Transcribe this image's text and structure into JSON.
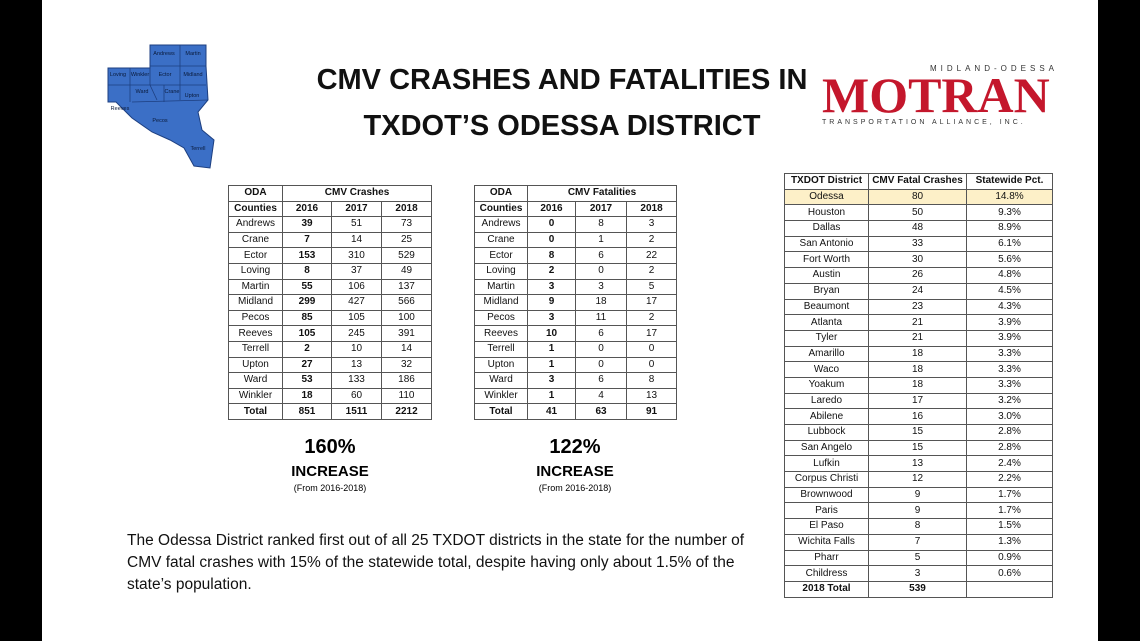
{
  "title_lines": [
    "CMV CRASHES AND FATALITIES IN",
    "TXDOT’S ODESSA DISTRICT"
  ],
  "map": {
    "labels": [
      "Andrews",
      "Martin",
      "Loving",
      "Winkler",
      "Ector",
      "Midland",
      "Ward",
      "Crane",
      "Upton",
      "Reeves",
      "Pecos",
      "Terrell"
    ]
  },
  "logo": {
    "top": "MIDLAND-ODESSA",
    "name": "MOTRAN",
    "bottom": "TRANSPORTATION ALLIANCE, INC."
  },
  "crashes_table": {
    "header": [
      "ODA",
      "CMV Crashes"
    ],
    "columns": [
      "Counties",
      "2016",
      "2017",
      "2018"
    ],
    "rows": [
      [
        "Andrews",
        39,
        51,
        73
      ],
      [
        "Crane",
        7,
        14,
        25
      ],
      [
        "Ector",
        153,
        310,
        529
      ],
      [
        "Loving",
        8,
        37,
        49
      ],
      [
        "Martin",
        55,
        106,
        137
      ],
      [
        "Midland",
        299,
        427,
        566
      ],
      [
        "Pecos",
        85,
        105,
        100
      ],
      [
        "Reeves",
        105,
        245,
        391
      ],
      [
        "Terrell",
        2,
        10,
        14
      ],
      [
        "Upton",
        27,
        13,
        32
      ],
      [
        "Ward",
        53,
        133,
        186
      ],
      [
        "Winkler",
        18,
        60,
        110
      ]
    ],
    "total": [
      "Total",
      851,
      1511,
      2212
    ]
  },
  "fatalities_table": {
    "header": [
      "ODA",
      "CMV Fatalities"
    ],
    "columns": [
      "Counties",
      "2016",
      "2017",
      "2018"
    ],
    "rows": [
      [
        "Andrews",
        0,
        8,
        3
      ],
      [
        "Crane",
        0,
        1,
        2
      ],
      [
        "Ector",
        8,
        6,
        22
      ],
      [
        "Loving",
        2,
        0,
        2
      ],
      [
        "Martin",
        3,
        3,
        5
      ],
      [
        "Midland",
        9,
        18,
        17
      ],
      [
        "Pecos",
        3,
        11,
        2
      ],
      [
        "Reeves",
        10,
        6,
        17
      ],
      [
        "Terrell",
        1,
        0,
        0
      ],
      [
        "Upton",
        1,
        0,
        0
      ],
      [
        "Ward",
        3,
        6,
        8
      ],
      [
        "Winkler",
        1,
        4,
        13
      ]
    ],
    "total": [
      "Total",
      41,
      63,
      91
    ]
  },
  "crashes_increase": {
    "pct": "160%",
    "label": "INCREASE",
    "note": "(From 2016-2018)"
  },
  "fatalities_increase": {
    "pct": "122%",
    "label": "INCREASE",
    "note": "(From 2016-2018)"
  },
  "districts_table": {
    "columns": [
      "TXDOT District",
      "CMV Fatal Crashes",
      "Statewide Pct."
    ],
    "rows": [
      [
        "Odessa",
        80,
        "14.8%"
      ],
      [
        "Houston",
        50,
        "9.3%"
      ],
      [
        "Dallas",
        48,
        "8.9%"
      ],
      [
        "San Antonio",
        33,
        "6.1%"
      ],
      [
        "Fort Worth",
        30,
        "5.6%"
      ],
      [
        "Austin",
        26,
        "4.8%"
      ],
      [
        "Bryan",
        24,
        "4.5%"
      ],
      [
        "Beaumont",
        23,
        "4.3%"
      ],
      [
        "Atlanta",
        21,
        "3.9%"
      ],
      [
        "Tyler",
        21,
        "3.9%"
      ],
      [
        "Amarillo",
        18,
        "3.3%"
      ],
      [
        "Waco",
        18,
        "3.3%"
      ],
      [
        "Yoakum",
        18,
        "3.3%"
      ],
      [
        "Laredo",
        17,
        "3.2%"
      ],
      [
        "Abilene",
        16,
        "3.0%"
      ],
      [
        "Lubbock",
        15,
        "2.8%"
      ],
      [
        "San Angelo",
        15,
        "2.8%"
      ],
      [
        "Lufkin",
        13,
        "2.4%"
      ],
      [
        "Corpus Christi",
        12,
        "2.2%"
      ],
      [
        "Brownwood",
        9,
        "1.7%"
      ],
      [
        "Paris",
        9,
        "1.7%"
      ],
      [
        "El Paso",
        8,
        "1.5%"
      ],
      [
        "Wichita Falls",
        7,
        "1.3%"
      ],
      [
        "Pharr",
        5,
        "0.9%"
      ],
      [
        "Childress",
        3,
        "0.6%"
      ]
    ],
    "total": [
      "2018 Total",
      539
    ]
  },
  "paragraph": "The Odessa District ranked first out of all 25 TXDOT districts in the state for the number of CMV fatal crashes with 15% of the statewide total, despite having only about 1.5% of the state’s population."
}
